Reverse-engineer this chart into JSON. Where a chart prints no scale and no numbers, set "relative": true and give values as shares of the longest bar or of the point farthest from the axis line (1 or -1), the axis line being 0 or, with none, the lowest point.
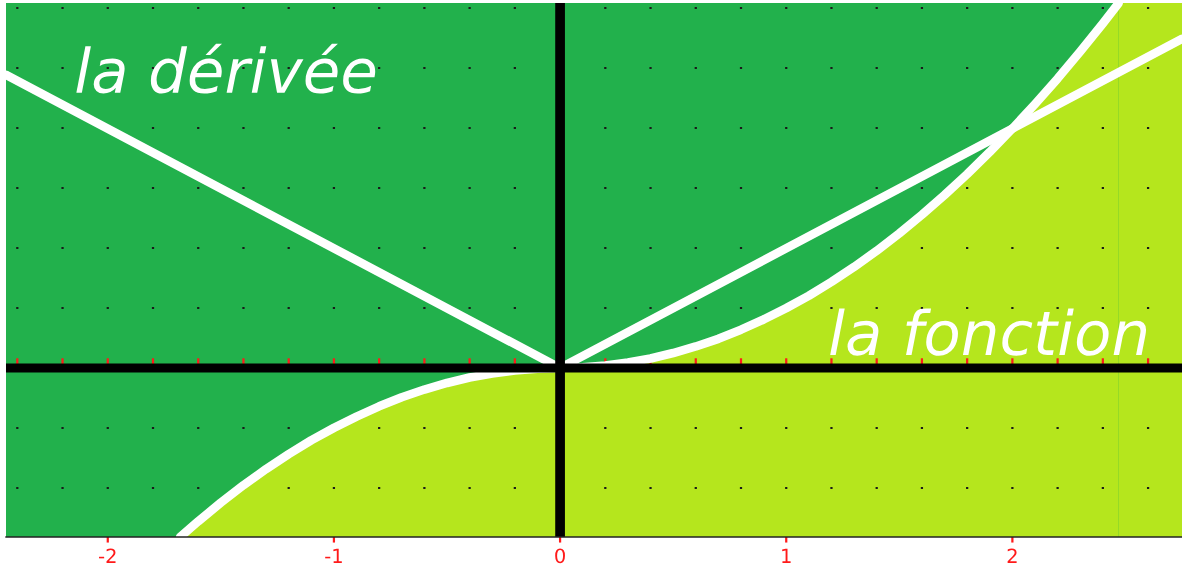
{
  "chart_data": {
    "type": "line",
    "relative": true,
    "xlim": [
      -2.45,
      2.75
    ],
    "xticks": [
      {
        "value": -2.4,
        "label": null
      },
      {
        "value": -2.2,
        "label": null
      },
      -2,
      {
        "value": -1.8,
        "label": null
      },
      {
        "value": -1.6,
        "label": null
      },
      {
        "value": -1.4,
        "label": null
      },
      {
        "value": -1.2,
        "label": null
      },
      -1,
      {
        "value": -0.8,
        "label": null
      },
      {
        "value": -0.6,
        "label": null
      },
      {
        "value": -0.4,
        "label": null
      },
      {
        "value": -0.2,
        "label": null
      },
      0,
      {
        "value": 0.2,
        "label": null
      },
      {
        "value": 0.4,
        "label": null
      },
      {
        "value": 0.6,
        "label": null
      },
      {
        "value": 0.8,
        "label": null
      },
      1,
      {
        "value": 1.2,
        "label": null
      },
      {
        "value": 1.4,
        "label": null
      },
      {
        "value": 1.6,
        "label": null
      },
      {
        "value": 1.8,
        "label": null
      },
      2,
      {
        "value": 2.2,
        "label": null
      },
      {
        "value": 2.4,
        "label": null
      },
      {
        "value": 2.6,
        "label": null
      }
    ],
    "tick_labels": "x",
    "grid": "x",
    "bands": [
      {
        "axis": "x",
        "from": 2.47,
        "to": 2.75,
        "color": "#b5e61d"
      }
    ],
    "series": [
      {
        "name": "la dérivée",
        "color": "#ffffff",
        "x": [
          -2.45,
          0,
          2.75
        ],
        "values": [
          0.803,
          0,
          0.902
        ]
      },
      {
        "name": "la fonction",
        "color": "#ffffff",
        "x": [
          -1.68,
          -1.6,
          -1.5,
          -1.4,
          -1.3,
          -1.2,
          -1.1,
          -1.0,
          -0.9,
          -0.8,
          -0.7,
          -0.6,
          -0.5,
          -0.4,
          -0.3,
          -0.2,
          -0.1,
          0,
          0.1,
          0.2,
          0.3,
          0.4,
          0.5,
          0.6,
          0.7,
          0.8,
          0.9,
          1.0,
          1.1,
          1.2,
          1.3,
          1.4,
          1.5,
          1.6,
          1.7,
          1.8,
          1.9,
          2.0,
          2.1,
          2.2,
          2.3,
          2.4,
          2.47
        ],
        "values": [
          -0.463,
          -0.42,
          -0.369,
          -0.321,
          -0.277,
          -0.236,
          -0.198,
          -0.164,
          -0.133,
          -0.105,
          -0.08,
          -0.059,
          -0.041,
          -0.026,
          -0.015,
          -0.007,
          -0.002,
          0,
          0.002,
          0.007,
          0.015,
          0.026,
          0.041,
          0.059,
          0.08,
          0.105,
          0.133,
          0.164,
          0.198,
          0.236,
          0.277,
          0.321,
          0.369,
          0.42,
          0.474,
          0.531,
          0.592,
          0.656,
          0.723,
          0.793,
          0.867,
          0.944,
          1.0
        ],
        "lower": [
          -0.463,
          -0.463,
          -0.463,
          -0.463,
          -0.463,
          -0.463,
          -0.463,
          -0.463,
          -0.463,
          -0.463,
          -0.463,
          -0.463,
          -0.463,
          -0.463,
          -0.463,
          -0.463,
          -0.463,
          -0.463,
          -0.463,
          -0.463,
          -0.463,
          -0.463,
          -0.463,
          -0.463,
          -0.463,
          -0.463,
          -0.463,
          -0.463,
          -0.463,
          -0.463,
          -0.463,
          -0.463,
          -0.463,
          -0.463,
          -0.463,
          -0.463,
          -0.463,
          -0.463,
          -0.463,
          -0.463,
          -0.463,
          -0.463,
          -0.463
        ],
        "upper": [
          -0.463,
          -0.42,
          -0.369,
          -0.321,
          -0.277,
          -0.236,
          -0.198,
          -0.164,
          -0.133,
          -0.105,
          -0.08,
          -0.059,
          -0.041,
          -0.026,
          -0.015,
          -0.007,
          -0.002,
          0,
          0.002,
          0.007,
          0.015,
          0.026,
          0.041,
          0.059,
          0.08,
          0.105,
          0.133,
          0.164,
          0.198,
          0.236,
          0.277,
          0.321,
          0.369,
          0.42,
          0.474,
          0.531,
          0.592,
          0.656,
          0.723,
          0.793,
          0.867,
          0.944,
          1.0
        ]
      }
    ]
  }
}
